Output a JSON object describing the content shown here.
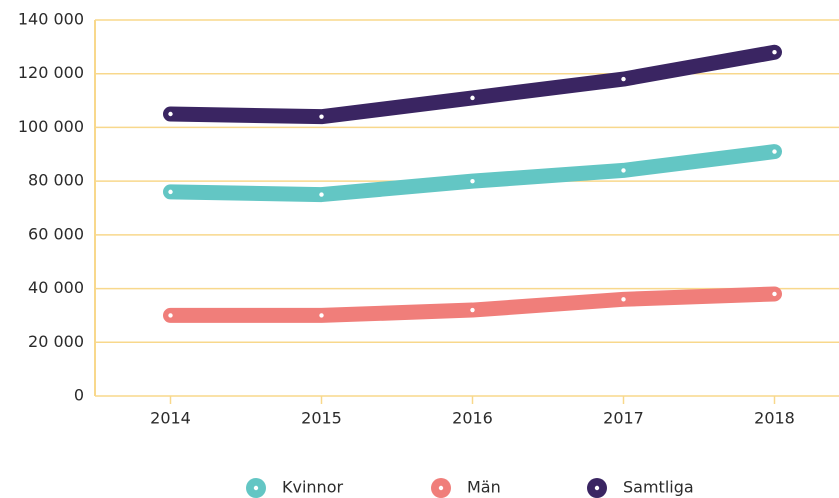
{
  "chart_data": {
    "type": "line",
    "categories": [
      "2014",
      "2015",
      "2016",
      "2017",
      "2018"
    ],
    "series": [
      {
        "name": "Kvinnor",
        "color": "#63c6c4",
        "values": [
          76000,
          75000,
          80000,
          84000,
          91000
        ]
      },
      {
        "name": "Män",
        "color": "#f07e7a",
        "values": [
          30000,
          30000,
          32000,
          36000,
          38000
        ]
      },
      {
        "name": "Samtliga",
        "color": "#3a2562",
        "values": [
          105000,
          104000,
          111000,
          118000,
          128000
        ]
      }
    ],
    "ylim": [
      0,
      140000
    ],
    "yticks": [
      0,
      {
        "value": 20000,
        "label": "20 000"
      },
      {
        "value": 40000,
        "label": "40 000"
      },
      {
        "value": 60000,
        "label": "60 000"
      },
      {
        "value": 80000,
        "label": "80 000"
      },
      {
        "value": 100000,
        "label": "100 000"
      },
      {
        "value": 120000,
        "label": "120 000"
      },
      {
        "value": 140000,
        "label": "140 000"
      }
    ],
    "grid": true,
    "legend": "bottom"
  }
}
